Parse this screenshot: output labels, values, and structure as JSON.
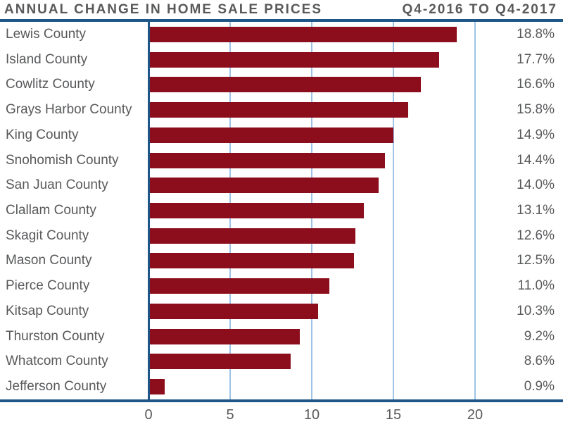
{
  "header": {
    "title": "ANNUAL CHANGE IN HOME SALE PRICES",
    "period": "Q4-2016 TO Q4-2017"
  },
  "chart_data": {
    "type": "bar",
    "orientation": "horizontal",
    "title": "ANNUAL CHANGE IN HOME SALE PRICES",
    "subtitle": "Q4-2016 TO Q4-2017",
    "categories": [
      "Lewis County",
      "Island County",
      "Cowlitz County",
      "Grays Harbor County",
      "King County",
      "Snohomish County",
      "San Juan County",
      "Clallam County",
      "Skagit County",
      "Mason County",
      "Pierce County",
      "Kitsap County",
      "Thurston County",
      "Whatcom County",
      "Jefferson County"
    ],
    "values": [
      18.8,
      17.7,
      16.6,
      15.8,
      14.9,
      14.4,
      14.0,
      13.1,
      12.6,
      12.5,
      11.0,
      10.3,
      9.2,
      8.6,
      0.9
    ],
    "value_labels": [
      "18.8%",
      "17.7%",
      "16.6%",
      "15.8%",
      "14.9%",
      "14.4%",
      "14.0%",
      "13.1%",
      "12.6%",
      "12.5%",
      "11.0%",
      "10.3%",
      "9.2%",
      "8.6%",
      "0.9%"
    ],
    "x_ticks": [
      0,
      5,
      10,
      15,
      20
    ],
    "xlim": [
      0,
      25
    ],
    "unit": "%",
    "grid": true,
    "legend": false,
    "bar_color": "#8C0D1C",
    "axis_color": "#1F5688",
    "gridline_color": "#9DC3E6",
    "text_color": "#58595B"
  }
}
